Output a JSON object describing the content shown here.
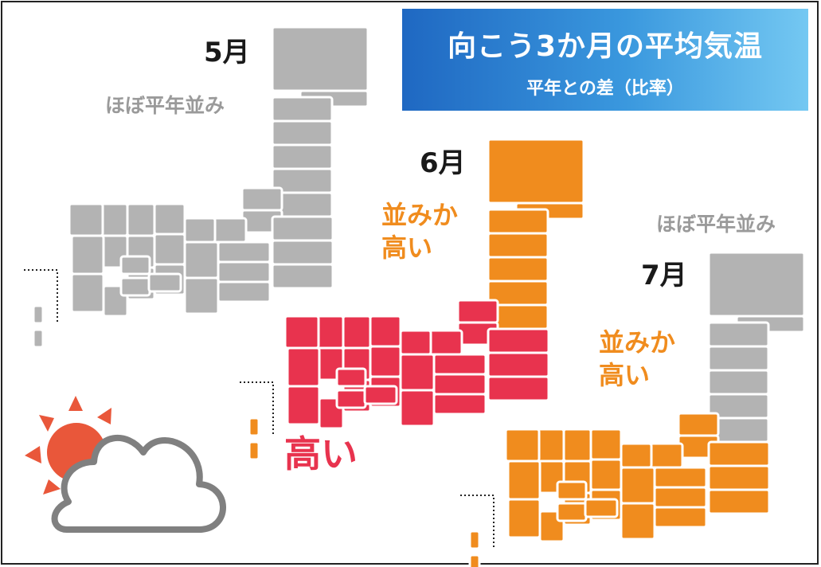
{
  "header": {
    "title": "向こう3か月の平均気温",
    "subtitle": "平年との差（比率）"
  },
  "maps": [
    {
      "month": "5月",
      "forecast": "ほぼ平年並み",
      "forecast_lines": [
        "ほぼ平年並み"
      ],
      "colors": {
        "hokkaido": "#b3b3b3",
        "tohoku": "#b3b3b3",
        "main": "#b3b3b3",
        "okinawa": "#b3b3b3"
      }
    },
    {
      "month": "6月",
      "forecast": "並みか高い / 高い",
      "forecast_lines": [
        "並みか",
        "高い"
      ],
      "secondary_forecast": "高い",
      "colors": {
        "hokkaido": "#f08c1e",
        "tohoku": "#f08c1e",
        "main": "#e8334e",
        "okinawa": "#f08c1e"
      }
    },
    {
      "month": "7月",
      "forecast": "ほぼ平年並み / 並みか高い",
      "forecast_top": "ほぼ平年並み",
      "forecast_lines": [
        "並みか",
        "高い"
      ],
      "colors": {
        "hokkaido": "#b3b3b3",
        "tohoku": "#b3b3b3",
        "main": "#f08c1e",
        "okinawa": "#f08c1e"
      }
    }
  ],
  "legend_colors": {
    "normal": "#b3b3b3",
    "normal_or_above": "#f08c1e",
    "above": "#e8334e"
  },
  "icon": {
    "name": "sun-cloud-icon",
    "sun_color": "#e9573a",
    "cloud_outline": "#808080"
  }
}
